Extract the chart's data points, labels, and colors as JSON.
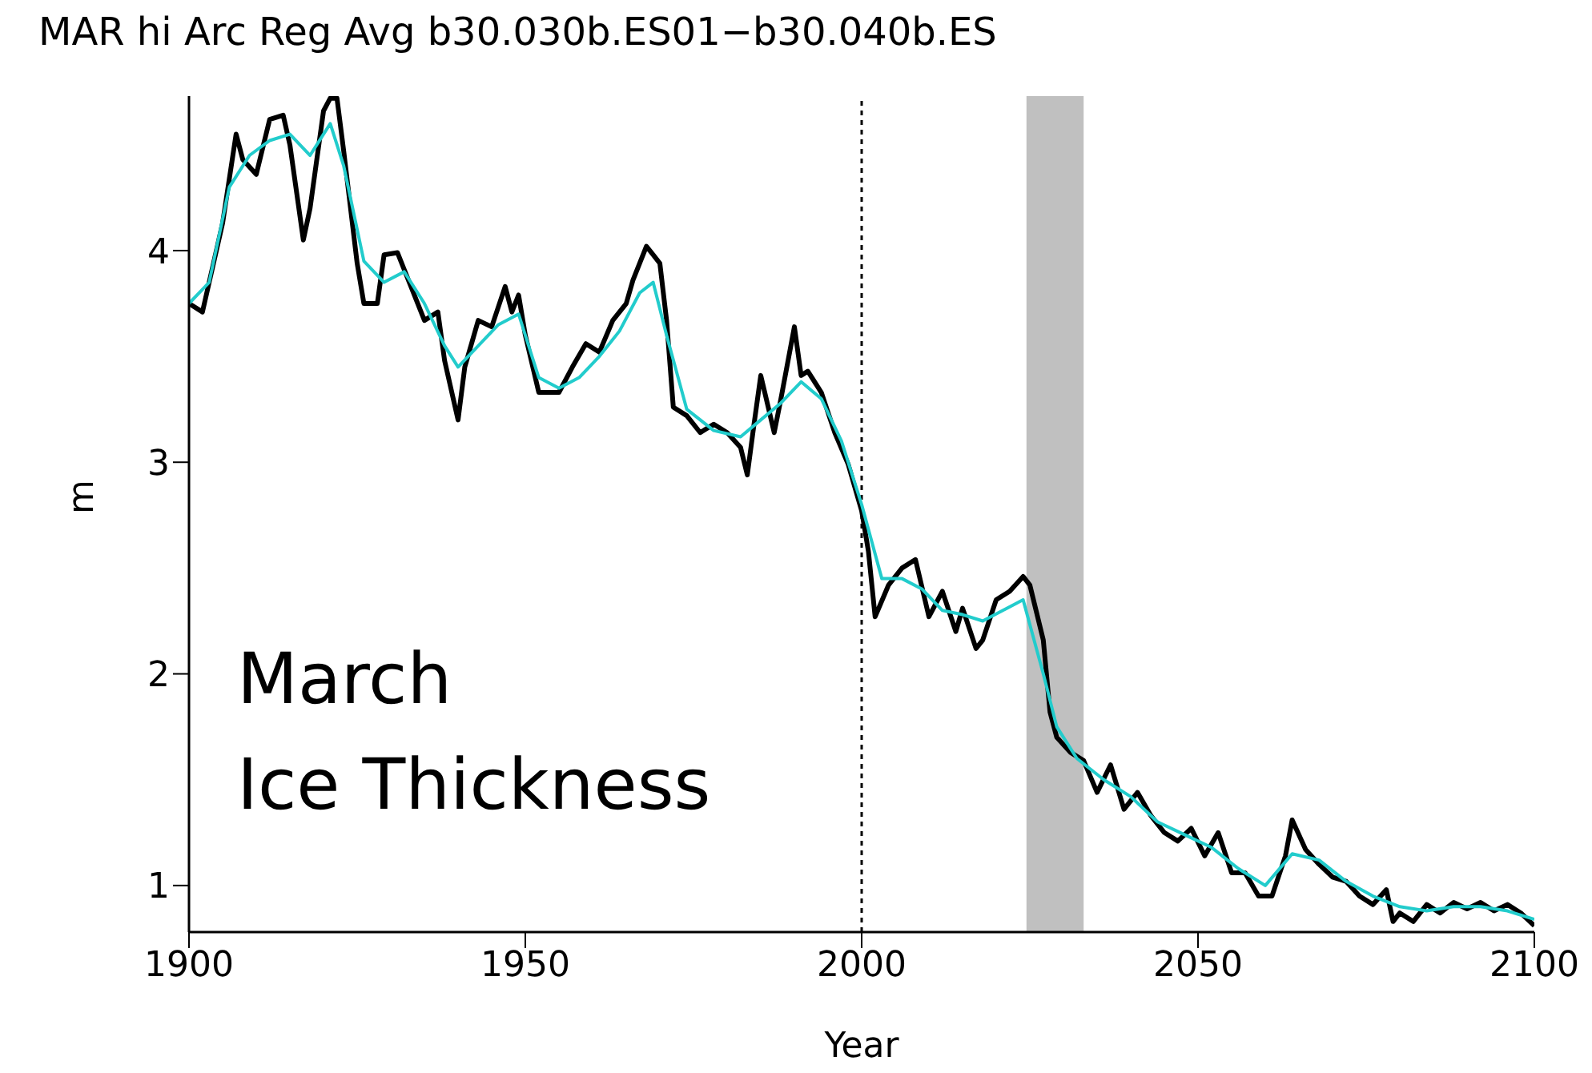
{
  "chart_data": {
    "type": "line",
    "title": "MAR hi Arc Reg Avg b30.030b.ES01−b30.040b.ES",
    "xlabel": "Year",
    "ylabel": "m",
    "annotations": [
      "March\nIce Thickness"
    ],
    "xlim": [
      1900,
      2100
    ],
    "xticks": [
      1900,
      1950,
      2000,
      2050,
      2100
    ],
    "ylim": [
      0.78,
      4.73
    ],
    "yticks": [
      1,
      2,
      3,
      4
    ],
    "legend": false,
    "marker": "none",
    "line_style": "solid",
    "ref_lines": [
      {
        "axis": "x",
        "value": 2000,
        "color": "#000000",
        "line_style": "dotted"
      }
    ],
    "bands": [
      {
        "axis": "x",
        "from": 2024.5,
        "to": 2033,
        "color": "#c0c0c0"
      }
    ],
    "series": [
      {
        "color": "#000000",
        "x": [
          1900,
          1902,
          1905,
          1907,
          1908,
          1910,
          1912,
          1914,
          1915,
          1917,
          1918,
          1920,
          1921,
          1922,
          1923,
          1925,
          1926,
          1928,
          1929,
          1931,
          1933,
          1935,
          1937,
          1938,
          1940,
          1941,
          1943,
          1945,
          1947,
          1948,
          1949,
          1950,
          1952,
          1955,
          1957,
          1959,
          1961,
          1963,
          1965,
          1966,
          1968,
          1969,
          1970,
          1971,
          1972,
          1974,
          1976,
          1978,
          1980,
          1982,
          1983,
          1984,
          1985,
          1987,
          1988,
          1990,
          1991,
          1992,
          1994,
          1996,
          1998,
          2000,
          2001,
          2002,
          2004,
          2006,
          2008,
          2010,
          2012,
          2014,
          2015,
          2017,
          2018,
          2020,
          2022,
          2024,
          2025,
          2027,
          2028,
          2029,
          2031,
          2033,
          2035,
          2037,
          2039,
          2041,
          2043,
          2045,
          2047,
          2049,
          2051,
          2053,
          2055,
          2057,
          2059,
          2061,
          2063,
          2064,
          2066,
          2068,
          2070,
          2072,
          2074,
          2076,
          2078,
          2079,
          2080,
          2082,
          2084,
          2086,
          2088,
          2090,
          2092,
          2094,
          2096,
          2098,
          2100
        ],
        "values": [
          3.75,
          3.71,
          4.13,
          4.55,
          4.43,
          4.36,
          4.62,
          4.64,
          4.5,
          4.05,
          4.2,
          4.66,
          4.72,
          4.72,
          4.47,
          3.94,
          3.75,
          3.75,
          3.98,
          3.99,
          3.83,
          3.67,
          3.71,
          3.48,
          3.2,
          3.45,
          3.67,
          3.64,
          3.83,
          3.71,
          3.79,
          3.6,
          3.33,
          3.33,
          3.45,
          3.56,
          3.52,
          3.67,
          3.75,
          3.86,
          4.02,
          3.98,
          3.94,
          3.67,
          3.26,
          3.22,
          3.14,
          3.18,
          3.14,
          3.07,
          2.94,
          3.18,
          3.41,
          3.14,
          3.3,
          3.64,
          3.41,
          3.43,
          3.33,
          3.14,
          2.99,
          2.77,
          2.58,
          2.27,
          2.42,
          2.5,
          2.54,
          2.27,
          2.39,
          2.2,
          2.31,
          2.12,
          2.16,
          2.35,
          2.39,
          2.46,
          2.42,
          2.16,
          1.82,
          1.7,
          1.63,
          1.59,
          1.44,
          1.57,
          1.36,
          1.44,
          1.33,
          1.25,
          1.21,
          1.27,
          1.14,
          1.25,
          1.06,
          1.06,
          0.95,
          0.95,
          1.14,
          1.31,
          1.17,
          1.1,
          1.04,
          1.02,
          0.95,
          0.91,
          0.98,
          0.83,
          0.87,
          0.83,
          0.91,
          0.87,
          0.92,
          0.89,
          0.92,
          0.88,
          0.91,
          0.87,
          0.81
        ]
      },
      {
        "color": "#22cccc",
        "x": [
          1900,
          1903,
          1906,
          1909,
          1912,
          1915,
          1918,
          1921,
          1923,
          1926,
          1929,
          1932,
          1935,
          1938,
          1940,
          1943,
          1946,
          1949,
          1952,
          1955,
          1958,
          1961,
          1964,
          1967,
          1969,
          1971,
          1974,
          1978,
          1982,
          1985,
          1988,
          1991,
          1994,
          1997,
          2000,
          2003,
          2006,
          2009,
          2012,
          2015,
          2018,
          2021,
          2024,
          2027,
          2029,
          2032,
          2036,
          2040,
          2044,
          2048,
          2052,
          2056,
          2060,
          2064,
          2068,
          2072,
          2076,
          2080,
          2084,
          2088,
          2092,
          2096,
          2100
        ],
        "values": [
          3.75,
          3.85,
          4.3,
          4.45,
          4.52,
          4.55,
          4.45,
          4.6,
          4.4,
          3.95,
          3.85,
          3.9,
          3.75,
          3.55,
          3.45,
          3.55,
          3.65,
          3.7,
          3.4,
          3.35,
          3.4,
          3.5,
          3.62,
          3.8,
          3.85,
          3.6,
          3.25,
          3.15,
          3.12,
          3.2,
          3.28,
          3.38,
          3.3,
          3.1,
          2.8,
          2.45,
          2.45,
          2.4,
          2.3,
          2.28,
          2.25,
          2.3,
          2.35,
          2.0,
          1.75,
          1.6,
          1.5,
          1.42,
          1.3,
          1.24,
          1.18,
          1.08,
          1.0,
          1.15,
          1.12,
          1.02,
          0.95,
          0.9,
          0.88,
          0.9,
          0.9,
          0.88,
          0.84
        ]
      }
    ]
  }
}
